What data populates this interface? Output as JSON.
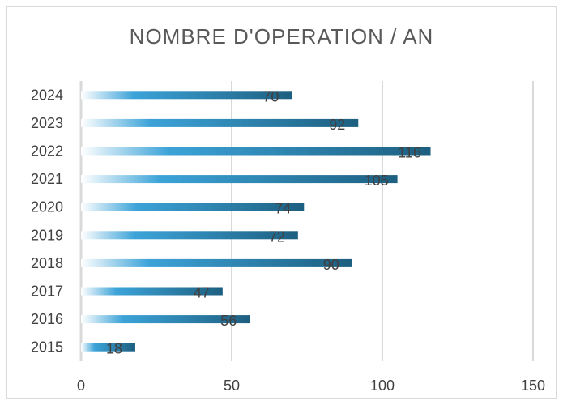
{
  "chart_data": {
    "type": "bar",
    "orientation": "horizontal",
    "title": "NOMBRE D'OPERATION / AN",
    "xlabel": "",
    "ylabel": "",
    "categories": [
      "2015",
      "2016",
      "2017",
      "2018",
      "2019",
      "2020",
      "2021",
      "2022",
      "2023",
      "2024"
    ],
    "values": [
      18,
      56,
      47,
      90,
      72,
      74,
      105,
      116,
      92,
      70
    ],
    "data_labels": [
      "18",
      "56",
      "47",
      "90",
      "72",
      "74",
      "105",
      "116",
      "92",
      "70"
    ],
    "xlim": [
      0,
      150
    ],
    "x_ticks": [
      "0",
      "50",
      "100",
      "150"
    ],
    "grid": "vertical",
    "legend": "none",
    "colors": {
      "bar_start": "#ffffff",
      "bar_mid": "#3ca3d8",
      "bar_end": "#1d5f80",
      "gridline": "#d9d9d9",
      "text": "#404040",
      "title": "#595959"
    }
  }
}
